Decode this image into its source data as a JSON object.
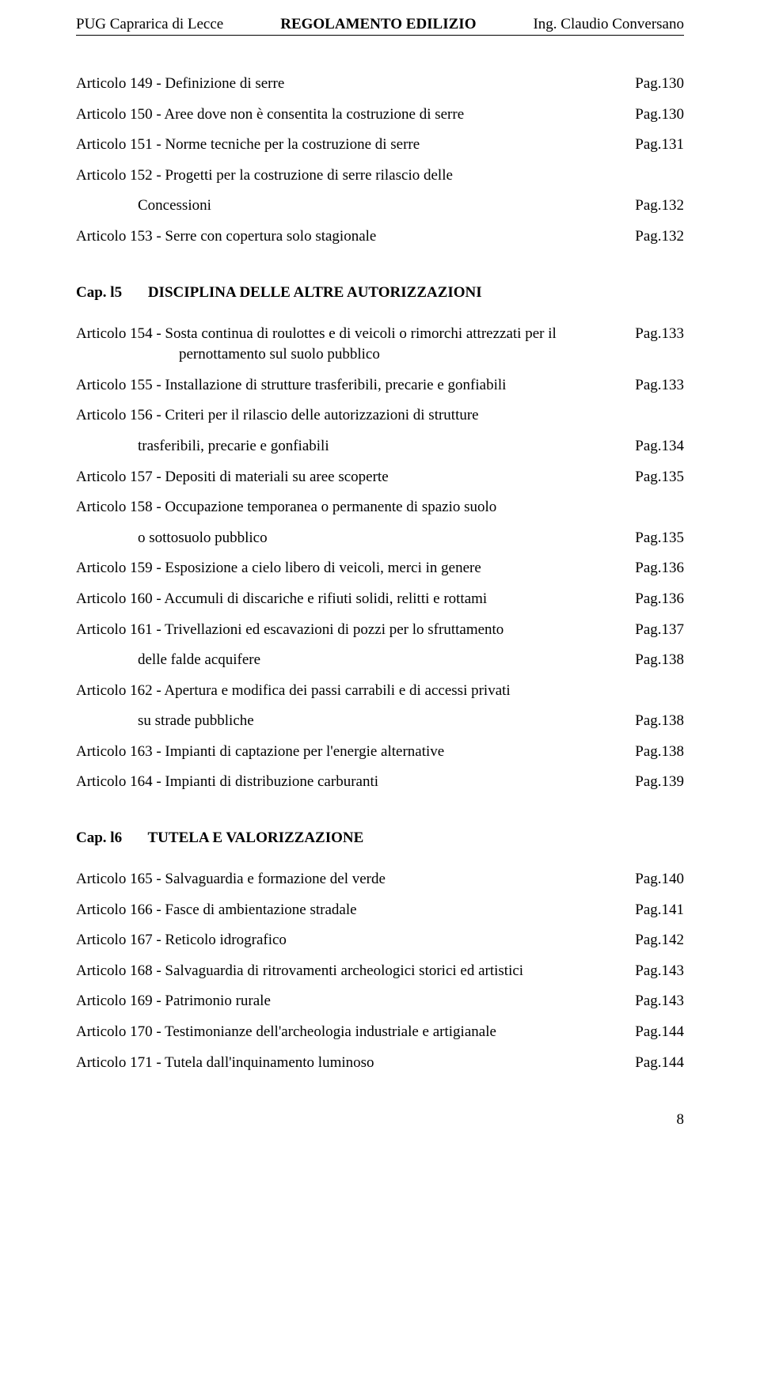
{
  "header": {
    "left": "PUG  Caprarica di Lecce",
    "center": "REGOLAMENTO EDILIZIO",
    "right": "Ing. Claudio Conversano"
  },
  "section1_entries": [
    {
      "text": "Articolo 149 - Definizione di serre",
      "page": "Pag.130",
      "indent": 0
    },
    {
      "text": "Articolo 150 - Aree dove non è consentita la costruzione di serre",
      "page": "Pag.130",
      "indent": 0
    },
    {
      "text": "Articolo 151 - Norme tecniche per la costruzione di serre",
      "page": "Pag.131",
      "indent": 0
    },
    {
      "text": "Articolo 152 - Progetti per la costruzione di serre rilascio delle",
      "page": "",
      "indent": 0
    },
    {
      "text": "Concessioni",
      "page": "Pag.132",
      "indent": 1
    },
    {
      "text": "Articolo 153 - Serre con copertura solo stagionale",
      "page": "Pag.132",
      "indent": 0
    }
  ],
  "section2": {
    "cap": "Cap. l5",
    "title": "DISCIPLINA DELLE ALTRE AUTORIZZAZIONI"
  },
  "section2_entries": [
    {
      "text": "Articolo 154 - Sosta continua di roulottes e di veicoli o rimorchi attrezzati per il pernottamento sul suolo pubblico",
      "page": "Pag.133",
      "indent": 0,
      "hanging": true
    },
    {
      "text": "Articolo 155 - Installazione di strutture trasferibili, precarie e gonfiabili",
      "page": "Pag.133",
      "indent": 0
    },
    {
      "text": "Articolo 156 - Criteri per il rilascio delle autorizzazioni di strutture",
      "page": "",
      "indent": 0
    },
    {
      "text": "trasferibili, precarie e gonfiabili",
      "page": "Pag.134",
      "indent": 1
    },
    {
      "text": "Articolo 157 - Depositi di materiali su aree scoperte",
      "page": "Pag.135",
      "indent": 0
    },
    {
      "text": "Articolo 158 - Occupazione temporanea o permanente  di spazio suolo",
      "page": "",
      "indent": 0
    },
    {
      "text": "o sottosuolo pubblico",
      "page": "Pag.135",
      "indent": 1
    },
    {
      "text": "Articolo 159 - Esposizione a cielo libero di veicoli, merci in genere",
      "page": "Pag.136",
      "indent": 0
    },
    {
      "text": "Articolo 160 - Accumuli di discariche e rifiuti solidi, relitti e rottami",
      "page": "Pag.136",
      "indent": 0
    },
    {
      "text": "Articolo 161 - Trivellazioni ed escavazioni di pozzi per lo sfruttamento",
      "page": "Pag.137",
      "indent": 0
    },
    {
      "text": "delle falde acquifere",
      "page": "Pag.138",
      "indent": 1
    },
    {
      "text": "Articolo 162 - Apertura e modifica dei passi carrabili e di accessi privati",
      "page": "",
      "indent": 0
    },
    {
      "text": "su strade pubbliche",
      "page": "Pag.138",
      "indent": 1
    },
    {
      "text": "Articolo 163 - Impianti di captazione per l'energie alternative",
      "page": "Pag.138",
      "indent": 0
    },
    {
      "text": "Articolo 164 - Impianti di distribuzione carburanti",
      "page": "Pag.139",
      "indent": 0
    }
  ],
  "section3": {
    "cap": "Cap. l6",
    "title": "TUTELA E VALORIZZAZIONE"
  },
  "section3_entries": [
    {
      "text": "Articolo  165 - Salvaguardia e formazione del verde",
      "page": "Pag.140",
      "indent": 0
    },
    {
      "text": "Articolo  166 - Fasce di ambientazione stradale",
      "page": "Pag.141",
      "indent": 0
    },
    {
      "text": "Articolo  167 - Reticolo idrografico",
      "page": "Pag.142",
      "indent": 0
    },
    {
      "text": "Articolo  168 - Salvaguardia di ritrovamenti  archeologici storici ed artistici",
      "page": "Pag.143",
      "indent": 0
    },
    {
      "text": "Articolo  169 - Patrimonio rurale",
      "page": "Pag.143",
      "indent": 0
    },
    {
      "text": "Articolo  170 - Testimonianze dell'archeologia industriale e artigianale",
      "page": "Pag.144",
      "indent": 0
    },
    {
      "text": "Articolo  171 - Tutela dall'inquinamento luminoso",
      "page": "Pag.144",
      "indent": 0
    }
  ],
  "page_number": "8"
}
